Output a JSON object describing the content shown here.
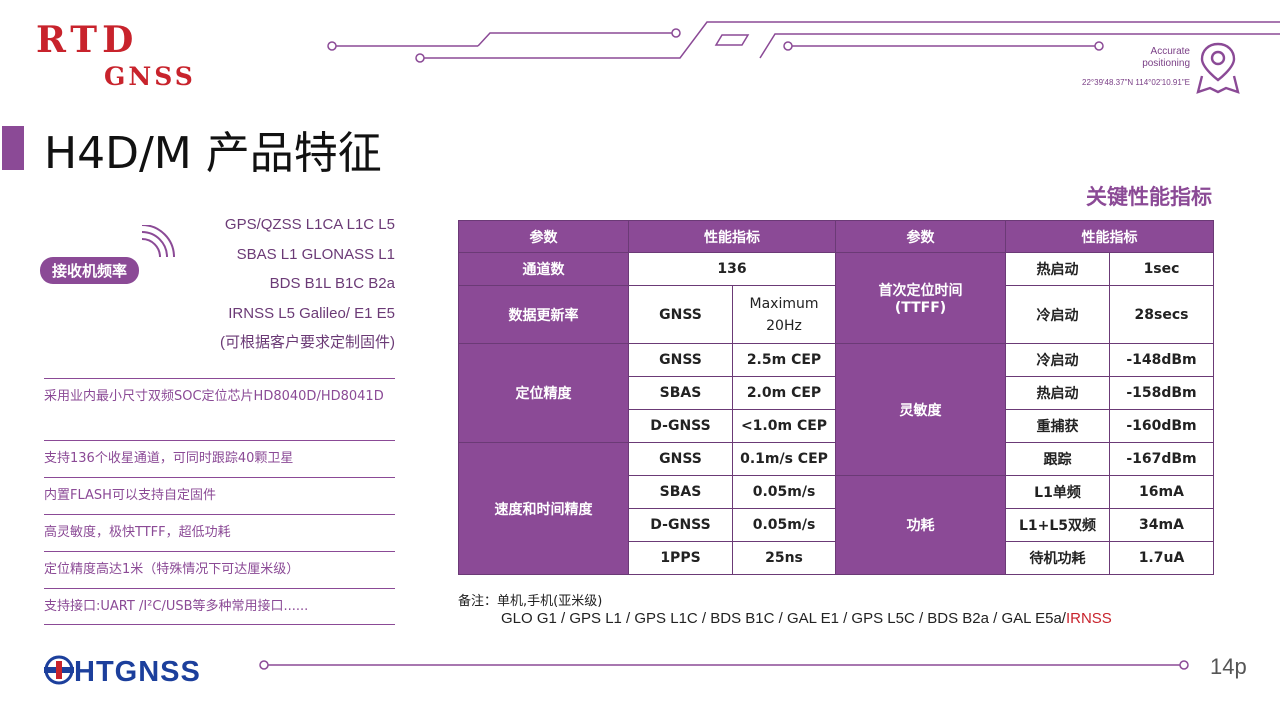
{
  "brand": {
    "logo_top": "RTD",
    "logo_bottom": "GNSS",
    "accent": "#8b4a96",
    "red": "#c8232c"
  },
  "header": {
    "tagline_line1": "Accurate",
    "tagline_line2": "positioning",
    "coordinates": "22°39'48.37\"N 114°02'10.91\"E",
    "pin_icon": "location-pin-map-icon"
  },
  "title": "H4D/M 产品特征",
  "subtitle": "关键性能指标",
  "receiver": {
    "badge": "接收机频率",
    "bands": [
      "GPS/QZSS L1CA L1C L5",
      "SBAS L1 GLONASS L1",
      "BDS B1L B1C B2a",
      "IRNSS L5 Galileo/ E1 E5",
      "(可根据客户要求定制固件)"
    ]
  },
  "features": [
    "采用业内最小尺寸双频SOC定位芯片HD8040D/HD8041D",
    "支持136个收星通道，可同时跟踪40颗卫星",
    "内置FLASH可以支持自定固件",
    "高灵敏度，极快TTFF，超低功耗",
    "定位精度高达1米（特殊情况下可达厘米级）",
    "支持接口:UART /I²C/USB等多种常用接口......"
  ],
  "table": {
    "headers": [
      "参数",
      "性能指标",
      "参数",
      "性能指标"
    ],
    "channels_label": "通道数",
    "channels_value": "136",
    "update_label": "数据更新率",
    "update_sub": "GNSS",
    "update_value_1": "Maximum",
    "update_value_2": "20Hz",
    "accuracy_label": "定位精度",
    "accuracy": [
      {
        "k": "GNSS",
        "v": "2.5m CEP"
      },
      {
        "k": "SBAS",
        "v": "2.0m CEP"
      },
      {
        "k": "D-GNSS",
        "v": "<1.0m CEP"
      }
    ],
    "velocity_label": "速度和时间精度",
    "velocity": [
      {
        "k": "GNSS",
        "v": "0.1m/s CEP"
      },
      {
        "k": "SBAS",
        "v": "0.05m/s"
      },
      {
        "k": "D-GNSS",
        "v": "0.05m/s"
      },
      {
        "k": "1PPS",
        "v": "25ns"
      }
    ],
    "ttff_label_1": "首次定位时间",
    "ttff_label_2": "(TTFF)",
    "ttff": [
      {
        "k": "热启动",
        "v": "1sec"
      },
      {
        "k": "冷启动",
        "v": "28secs"
      }
    ],
    "sens_label": "灵敏度",
    "sens": [
      {
        "k": "冷启动",
        "v": "-148dBm"
      },
      {
        "k": "热启动",
        "v": "-158dBm"
      },
      {
        "k": "重捕获",
        "v": "-160dBm"
      },
      {
        "k": "跟踪",
        "v": "-167dBm"
      }
    ],
    "power_label": "功耗",
    "power": [
      {
        "k": "L1单频",
        "v": "16mA"
      },
      {
        "k": "L1+L5双频",
        "v": "34mA"
      },
      {
        "k": "待机功耗",
        "v": "1.7uA"
      }
    ]
  },
  "notes": {
    "line1": "备注：单机,手机(亚米级)",
    "line2": "GLO G1 / GPS L1 / GPS L1C / BDS B1C / GAL E1 / GPS L5C / BDS B2a / GAL E5a/",
    "line2_red": "IRNSS"
  },
  "footer": {
    "logo": "HTGNSS",
    "page": "14p"
  }
}
